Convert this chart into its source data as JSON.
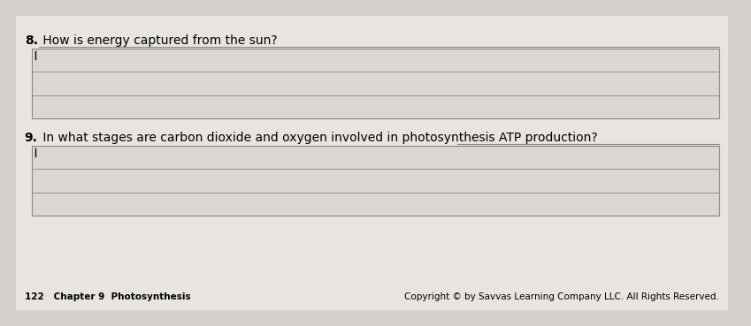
{
  "bg_color": "#d4d0cc",
  "page_bg": "#e8e5e0",
  "box_bg": "#dbd8d3",
  "box_border": "#888888",
  "line_color": "#888888",
  "q1_label": "8.",
  "q1_text": " How is energy captured from the sun?",
  "q2_label": "9.",
  "q2_text": " In what stages are carbon dioxide and oxygen involved in photosynthesis ATP production?",
  "footer_left": "122   Chapter 9  Photosynthesis",
  "footer_right": "Copyright © by Savvas Learning Company LLC. All Rights Reserved.",
  "label_fontsize": 10,
  "question_fontsize": 10,
  "footer_fontsize": 7.5,
  "underline_q1": true,
  "underline_q2": true
}
